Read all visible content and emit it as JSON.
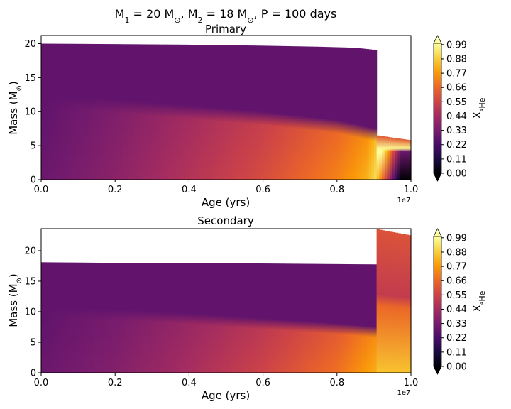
{
  "figure": {
    "suptitle": "M$_1$ = 20 M$_\\odot$, M$_2$ = 18 M$_\\odot$, P = 100 days"
  },
  "colors": {
    "colormap": [
      "#000004",
      "#1b0c41",
      "#4a0c6b",
      "#781c6d",
      "#a52c60",
      "#cf4446",
      "#ed6925",
      "#fb9b06",
      "#f7d13d",
      "#fcffa4"
    ],
    "axes": "#000000",
    "background": "#ffffff"
  },
  "chart_data": [
    {
      "type": "heatmap",
      "title": "Primary",
      "xlabel": "Age (yrs)",
      "ylabel": "Mass (M$_\\odot$)",
      "x_offset_label": "1e7",
      "xlim": [
        0.0,
        1.0
      ],
      "ylim": [
        0,
        21.2
      ],
      "xticks": [
        "0.0",
        "0.2",
        "0.4",
        "0.6",
        "0.8",
        "1.0"
      ],
      "yticks": [
        "0",
        "5",
        "10",
        "15",
        "20"
      ],
      "colorbar_label": "X$_{^4\\mathrm{He}}$",
      "colorbar_ticks": [
        "0.00",
        "0.11",
        "0.22",
        "0.33",
        "0.44",
        "0.55",
        "0.66",
        "0.77",
        "0.88",
        "0.99"
      ],
      "colorbar_range": [
        0.0,
        1.0
      ],
      "total_mass": {
        "age": [
          0.0,
          0.15,
          0.4,
          0.6,
          0.75,
          0.85,
          0.9,
          0.91
        ],
        "mass": [
          20.0,
          19.95,
          19.85,
          19.7,
          19.55,
          19.4,
          19.1,
          18.9
        ]
      },
      "core_boundary": {
        "age": [
          0.0,
          0.2,
          0.4,
          0.6,
          0.8,
          0.9
        ],
        "mass": [
          11.5,
          11.0,
          10.1,
          9.2,
          8.0,
          6.8
        ]
      },
      "core_he_fraction": {
        "age": [
          0.0,
          0.2,
          0.4,
          0.6,
          0.8,
          0.88,
          0.9,
          0.91
        ],
        "value": [
          0.3,
          0.38,
          0.48,
          0.58,
          0.72,
          0.82,
          0.9,
          0.95
        ]
      },
      "envelope_he_fraction": 0.28,
      "post_transfer": {
        "age": [
          0.91,
          1.0
        ],
        "total_mass": [
          6.5,
          5.8
        ],
        "core_mass": [
          4.6,
          4.6
        ]
      }
    },
    {
      "type": "heatmap",
      "title": "Secondary",
      "xlabel": "Age (yrs)",
      "ylabel": "Mass (M$_\\odot$)",
      "x_offset_label": "1e7",
      "xlim": [
        0.0,
        1.0
      ],
      "ylim": [
        0,
        23.6
      ],
      "xticks": [
        "0.0",
        "0.2",
        "0.4",
        "0.6",
        "0.8",
        "1.0"
      ],
      "yticks": [
        "0",
        "5",
        "10",
        "15",
        "20"
      ],
      "colorbar_label": "X$_{^4\\mathrm{He}}$",
      "colorbar_ticks": [
        "0.00",
        "0.11",
        "0.22",
        "0.33",
        "0.44",
        "0.55",
        "0.66",
        "0.77",
        "0.88",
        "0.99"
      ],
      "colorbar_range": [
        0.0,
        1.0
      ],
      "total_mass": {
        "age": [
          0.0,
          0.2,
          0.4,
          0.6,
          0.8,
          0.91
        ],
        "mass": [
          18.1,
          18.0,
          18.0,
          17.9,
          17.8,
          17.75
        ]
      },
      "core_boundary": {
        "age": [
          0.0,
          0.2,
          0.4,
          0.6,
          0.8,
          0.91
        ],
        "mass": [
          10.2,
          9.7,
          9.0,
          8.2,
          7.4,
          6.8
        ]
      },
      "core_he_fraction": {
        "age": [
          0.0,
          0.2,
          0.4,
          0.6,
          0.8,
          0.88,
          0.91
        ],
        "value": [
          0.3,
          0.36,
          0.45,
          0.55,
          0.68,
          0.78,
          0.82
        ]
      },
      "envelope_he_fraction": 0.28,
      "post_transfer": {
        "age": [
          0.91,
          1.0
        ],
        "total_mass": [
          23.5,
          22.5
        ],
        "core_mass": [
          11.0,
          10.5
        ]
      }
    }
  ]
}
